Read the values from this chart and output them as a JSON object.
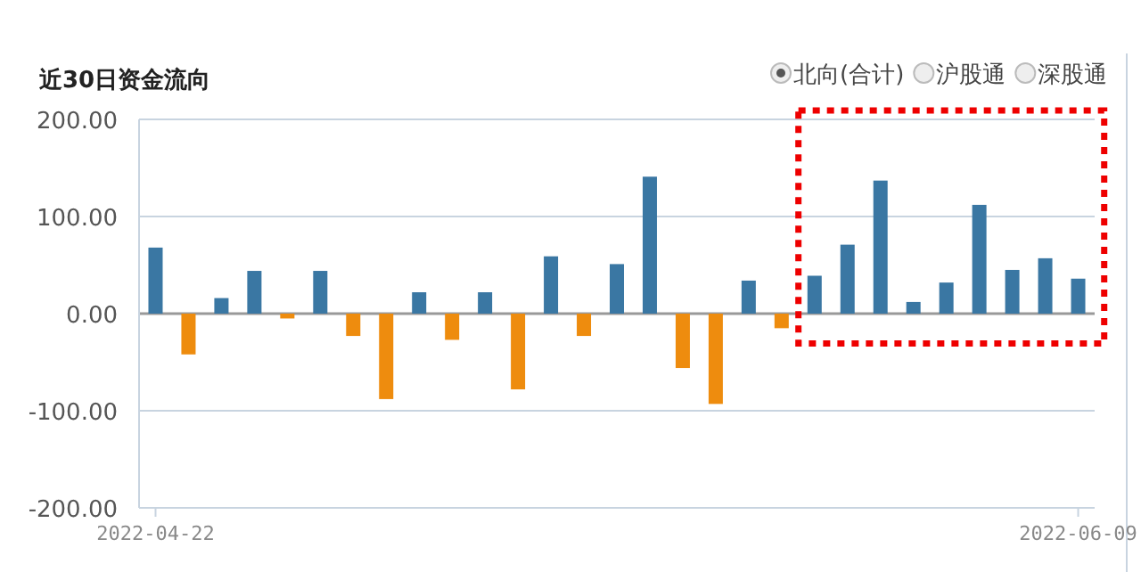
{
  "chart_data": {
    "type": "bar",
    "title": "近30日资金流向",
    "categories": [
      "2022-04-22",
      null,
      null,
      null,
      null,
      null,
      null,
      null,
      null,
      null,
      null,
      null,
      null,
      null,
      null,
      null,
      null,
      null,
      null,
      null,
      null,
      null,
      null,
      null,
      null,
      null,
      null,
      null,
      "2022-06-09"
    ],
    "values": [
      68,
      -42,
      16,
      44,
      -5,
      44,
      -23,
      -88,
      22,
      -27,
      22,
      -78,
      59,
      -23,
      51,
      141,
      -56,
      -93,
      34,
      -15,
      39,
      71,
      137,
      12,
      32,
      112,
      45,
      57,
      36
    ],
    "colors": [
      "#3a77a3",
      "#ee8c0e",
      "#3a77a3",
      "#3a77a3",
      "#ee8c0e",
      "#3a77a3",
      "#ee8c0e",
      "#ee8c0e",
      "#3a77a3",
      "#ee8c0e",
      "#3a77a3",
      "#ee8c0e",
      "#3a77a3",
      "#ee8c0e",
      "#3a77a3",
      "#3a77a3",
      "#ee8c0e",
      "#ee8c0e",
      "#3a77a3",
      "#ee8c0e",
      "#3a77a3",
      "#3a77a3",
      "#3a77a3",
      "#3a77a3",
      "#3a77a3",
      "#3a77a3",
      "#3a77a3",
      "#3a77a3",
      "#3a77a3"
    ],
    "ylim": [
      -200,
      200
    ],
    "yticks": [
      {
        "value": -200,
        "label": "-200.00"
      },
      {
        "value": -100,
        "label": "-100.00"
      },
      {
        "value": 0,
        "label": "0.00"
      },
      {
        "value": 100,
        "label": "100.00"
      },
      {
        "value": 200,
        "label": "200.00"
      }
    ],
    "grid": "y",
    "annotations": [
      "北向(合计)",
      "沪股通",
      "深股通"
    ]
  }
}
